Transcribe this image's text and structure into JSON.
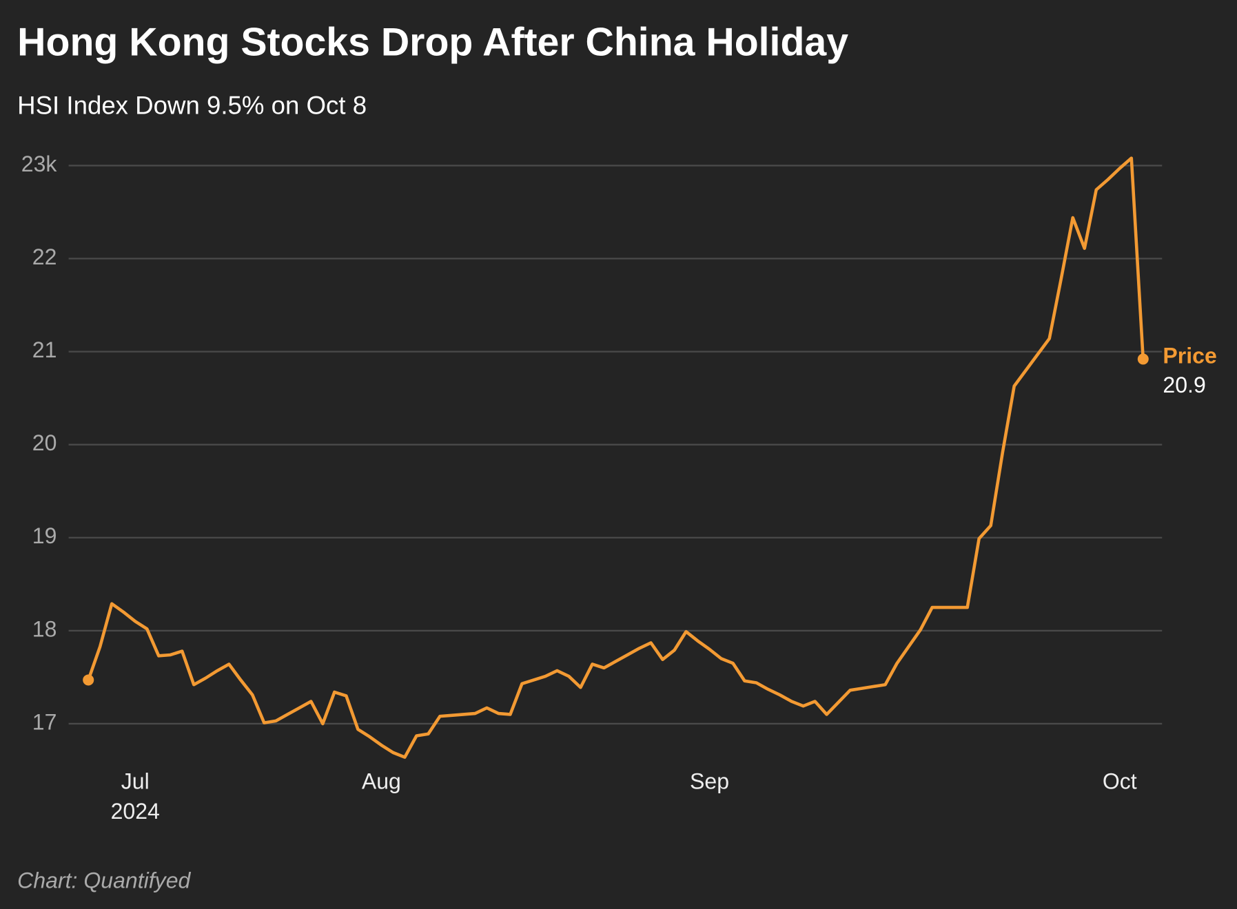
{
  "chart_data": {
    "type": "line",
    "title": "Hong Kong Stocks Drop After China Holiday",
    "subtitle": "HSI Index Down 9.5% on Oct 8",
    "source": "Chart: Quantifyed",
    "year": "2024",
    "categories": [
      null,
      null,
      null,
      null,
      "Jul",
      null,
      null,
      null,
      null,
      null,
      null,
      null,
      null,
      null,
      null,
      null,
      null,
      null,
      null,
      null,
      null,
      null,
      null,
      null,
      null,
      "Aug",
      null,
      null,
      null,
      null,
      null,
      null,
      null,
      null,
      null,
      null,
      null,
      null,
      null,
      null,
      null,
      null,
      null,
      null,
      null,
      null,
      null,
      null,
      null,
      null,
      null,
      null,
      null,
      "Sep",
      null,
      null,
      null,
      null,
      null,
      null,
      null,
      null,
      null,
      null,
      null,
      null,
      null,
      null,
      null,
      null,
      null,
      null,
      null,
      null,
      null,
      null,
      null,
      null,
      null,
      null,
      null,
      null,
      null,
      null,
      null,
      null,
      null,
      null,
      "Oct",
      null,
      null
    ],
    "series": [
      {
        "name": "Price",
        "color": "#f39a33",
        "values": [
          17.47,
          17.83,
          18.29,
          18.2,
          18.1,
          18.02,
          17.73,
          17.74,
          17.78,
          17.42,
          17.49,
          17.57,
          17.64,
          17.47,
          17.31,
          17.01,
          17.03,
          17.1,
          17.17,
          17.24,
          17.0,
          17.34,
          17.3,
          16.94,
          16.86,
          16.77,
          16.69,
          16.64,
          16.87,
          16.89,
          17.08,
          17.09,
          17.1,
          17.11,
          17.17,
          17.11,
          17.1,
          17.43,
          17.47,
          17.51,
          17.57,
          17.51,
          17.39,
          17.64,
          17.6,
          17.67,
          17.74,
          17.81,
          17.87,
          17.69,
          17.79,
          17.99,
          17.89,
          17.8,
          17.7,
          17.65,
          17.46,
          17.44,
          17.37,
          17.31,
          17.24,
          17.19,
          17.24,
          17.1,
          17.23,
          17.36,
          17.38,
          17.4,
          17.42,
          17.65,
          17.83,
          18.01,
          18.25,
          18.25,
          18.25,
          18.25,
          18.99,
          19.13,
          19.91,
          20.63,
          20.8,
          20.97,
          21.14,
          21.78,
          22.44,
          22.11,
          22.74,
          22.85,
          22.97,
          23.08,
          20.92
        ],
        "value_labels": [
          null,
          null,
          null,
          null,
          null,
          null,
          null,
          null,
          null,
          null,
          null,
          null,
          null,
          null,
          null,
          null,
          null,
          null,
          null,
          null,
          null,
          null,
          null,
          null,
          null,
          null,
          null,
          null,
          null,
          null,
          null,
          null,
          null,
          null,
          null,
          null,
          null,
          null,
          null,
          null,
          null,
          null,
          null,
          null,
          null,
          null,
          null,
          null,
          null,
          null,
          null,
          null,
          null,
          null,
          null,
          null,
          null,
          null,
          null,
          null,
          null,
          null,
          null,
          null,
          null,
          null,
          null,
          null,
          null,
          null,
          null,
          null,
          null,
          null,
          null,
          null,
          null,
          null,
          null,
          null,
          null,
          null,
          null,
          null,
          null,
          null,
          null,
          null,
          null,
          null,
          "20.9"
        ]
      }
    ],
    "ylim": [
      16.5,
      23.2
    ],
    "yticks": [
      17,
      18,
      19,
      20,
      21,
      22,
      {
        "value": 23,
        "label": "23k"
      }
    ],
    "grid": true
  }
}
